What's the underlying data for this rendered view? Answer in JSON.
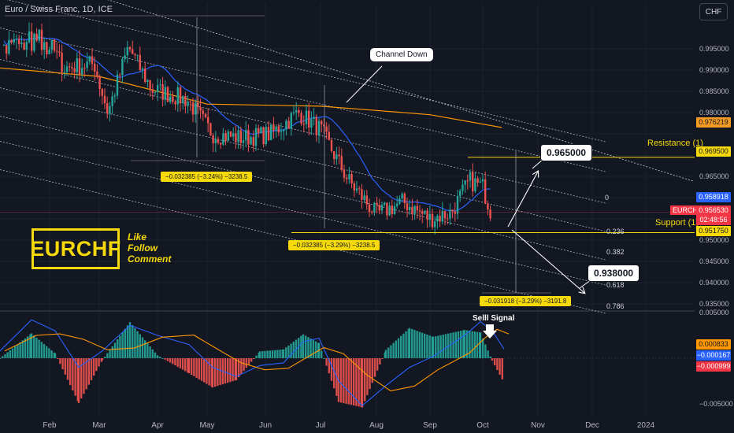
{
  "header": {
    "symbol_title": "Euro / Swiss Franc, 1D, ICE",
    "currency_button": "CHF"
  },
  "branding": {
    "logo_text": "EURCHF",
    "cta_lines": [
      "Like",
      "Follow",
      "Comment"
    ]
  },
  "annotations": {
    "channel_label": "Channel Down",
    "target_up": "0.965000",
    "target_down": "0.938000",
    "resistance_label": "Resistance (1)",
    "support_label": "Support (1)",
    "sell_signal": "Selll Signal",
    "measure_1": "−0.032385 (−3.24%) −3238.5",
    "measure_2": "−0.032385 (−3.29%) −3238.5",
    "measure_3": "−0.031918 (−3.29%) −3191.8",
    "fib_levels": [
      "0",
      "0.236",
      "0.382",
      "0.618",
      "0.786"
    ],
    "symbol_tag": "EURCHF"
  },
  "price_axis": {
    "ticks": [
      "0.995000",
      "0.990000",
      "0.985000",
      "0.980000",
      "0.965000",
      "0.950000",
      "0.945000",
      "0.940000",
      "0.935000"
    ],
    "badges": {
      "ma200": "0.976219",
      "resistance": "0.969500",
      "ma50": "0.958918",
      "last_price": "0.956530",
      "countdown": "02:48:56",
      "support": "0.951750"
    }
  },
  "macd_axis": {
    "ticks": [
      "0.005000",
      "−0.005000"
    ],
    "badges": {
      "signal": "0.000833",
      "macd": "−0.000167",
      "histogram": "−0.000999"
    }
  },
  "time_axis": {
    "labels": [
      "Feb",
      "Mar",
      "Apr",
      "May",
      "Jun",
      "Jul",
      "Aug",
      "Sep",
      "Oct",
      "Nov",
      "Dec",
      "2024"
    ]
  },
  "colors": {
    "background": "#131722",
    "up": "#26a69a",
    "down": "#ef5350",
    "ma50": "#2962ff",
    "ma200": "#ff9800",
    "highlight": "#f5d90a",
    "macd": "#2962ff",
    "signal": "#ff9800"
  },
  "chart_data": {
    "type": "candlestick",
    "title": "Euro / Swiss Franc, 1D, ICE",
    "ylim": [
      0.934,
      1.002
    ],
    "months": [
      "Feb",
      "Mar",
      "Apr",
      "May",
      "Jun",
      "Jul",
      "Aug",
      "Sep",
      "Oct"
    ],
    "close_anchors": [
      {
        "month_index": 0.0,
        "close": 0.996
      },
      {
        "month_index": 0.3,
        "close": 0.9905
      },
      {
        "month_index": 0.9,
        "close": 0.9915
      },
      {
        "month_index": 1.15,
        "close": 0.98
      },
      {
        "month_index": 1.5,
        "close": 0.9955
      },
      {
        "month_index": 1.9,
        "close": 0.9855
      },
      {
        "month_index": 2.6,
        "close": 0.983
      },
      {
        "month_index": 3.1,
        "close": 0.975
      },
      {
        "month_index": 3.6,
        "close": 0.974
      },
      {
        "month_index": 4.1,
        "close": 0.975
      },
      {
        "month_index": 4.6,
        "close": 0.98
      },
      {
        "month_index": 5.0,
        "close": 0.976
      },
      {
        "month_index": 5.5,
        "close": 0.964
      },
      {
        "month_index": 6.0,
        "close": 0.956
      },
      {
        "month_index": 6.5,
        "close": 0.959
      },
      {
        "month_index": 7.0,
        "close": 0.955
      },
      {
        "month_index": 7.4,
        "close": 0.9565
      },
      {
        "month_index": 7.75,
        "close": 0.964
      },
      {
        "month_index": 8.0,
        "close": 0.9625
      },
      {
        "month_index": 8.15,
        "close": 0.9565
      }
    ],
    "last_price": 0.95653,
    "resistance": 0.9695,
    "support": 0.95175,
    "targets": [
      0.965,
      0.938
    ],
    "moving_averages": [
      {
        "name": "MA50",
        "value": 0.958918
      },
      {
        "name": "MA200",
        "value": 0.976219
      }
    ],
    "macd": {
      "ylim": [
        -0.0058,
        0.0058
      ],
      "ticks": [
        0.005,
        -0.005
      ],
      "last": {
        "signal": 0.000833,
        "macd": -0.000167,
        "histogram": -0.000999
      }
    }
  }
}
